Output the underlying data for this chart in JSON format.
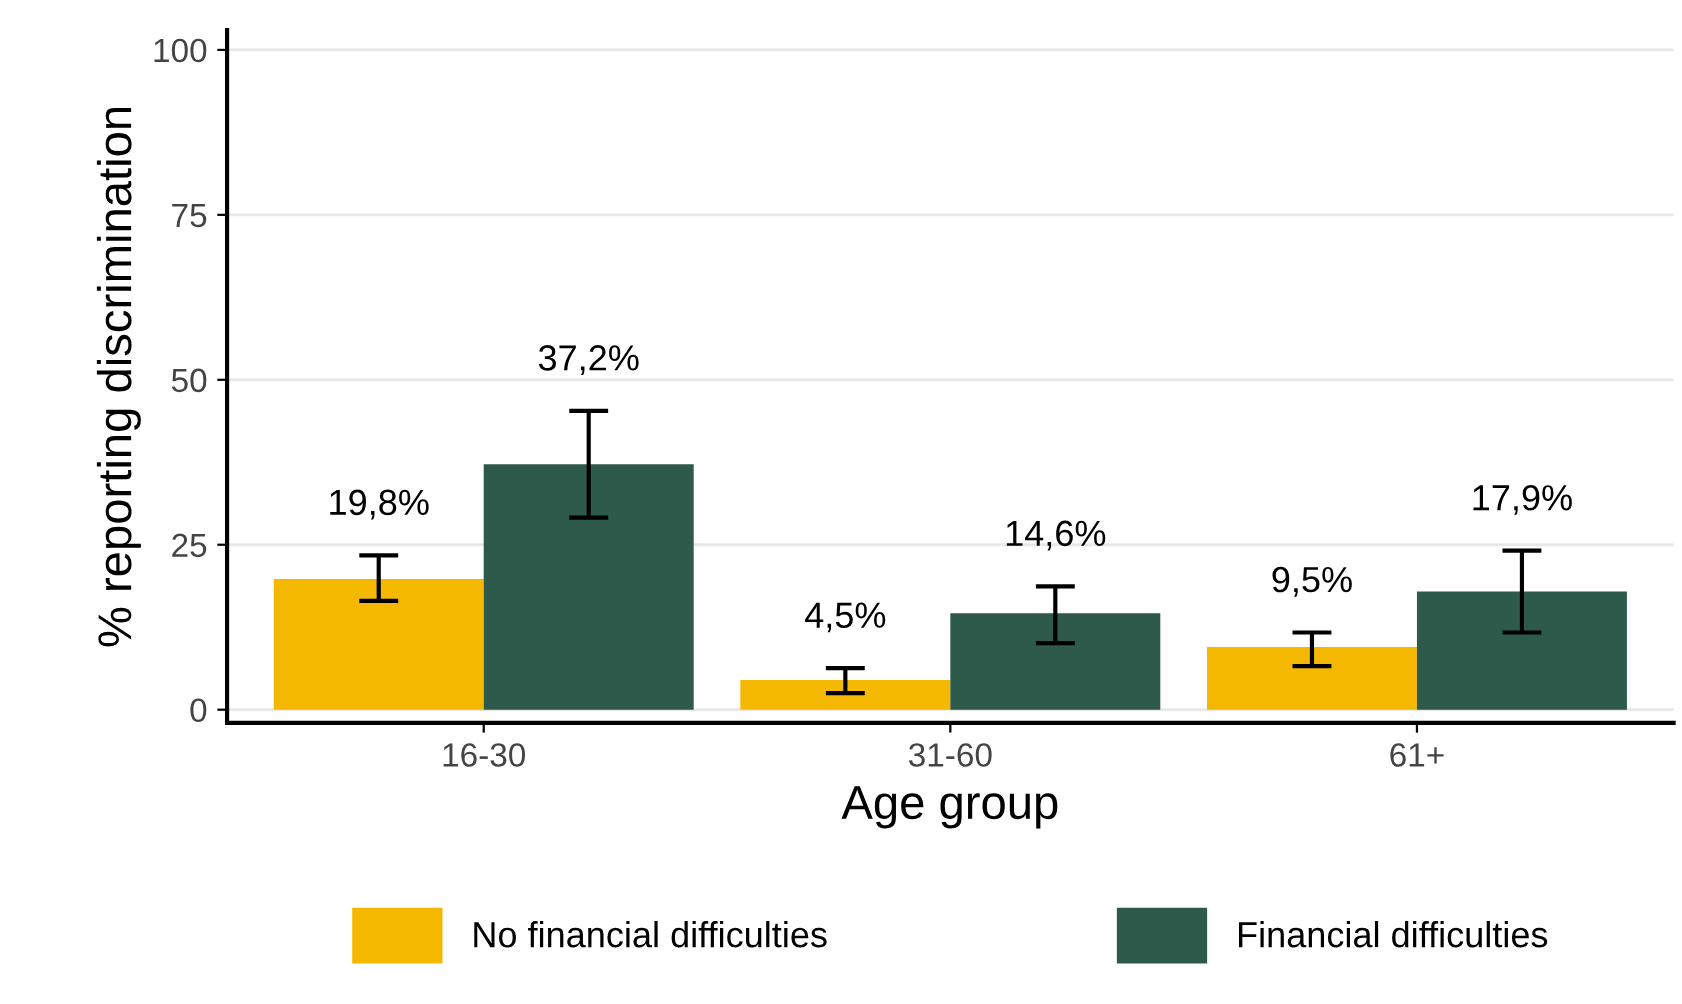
{
  "chart_data": {
    "type": "bar",
    "xlabel": "Age group",
    "ylabel": "% reporting discrimination",
    "categories": [
      "16-30",
      "31-60",
      "61+"
    ],
    "series": [
      {
        "name": "No financial difficulties",
        "color": "#f5b800",
        "values": [
          19.8,
          4.5,
          9.5
        ],
        "errors": [
          [
            16.5,
            23.4
          ],
          [
            2.5,
            6.3
          ],
          [
            6.6,
            11.7
          ]
        ],
        "value_labels": [
          "19,8%",
          "4,5%",
          "9,5%"
        ]
      },
      {
        "name": "Financial difficulties",
        "color": "#2d5a4a",
        "values": [
          37.2,
          14.6,
          17.9
        ],
        "errors": [
          [
            29.1,
            45.3
          ],
          [
            10.1,
            18.7
          ],
          [
            11.7,
            24.1
          ]
        ],
        "value_labels": [
          "37,2%",
          "14,6%",
          "17,9%"
        ]
      }
    ],
    "ylim": [
      -2,
      103
    ],
    "yticks": [
      0,
      25,
      50,
      75,
      100
    ],
    "grid": "y",
    "legend": "bottom"
  }
}
